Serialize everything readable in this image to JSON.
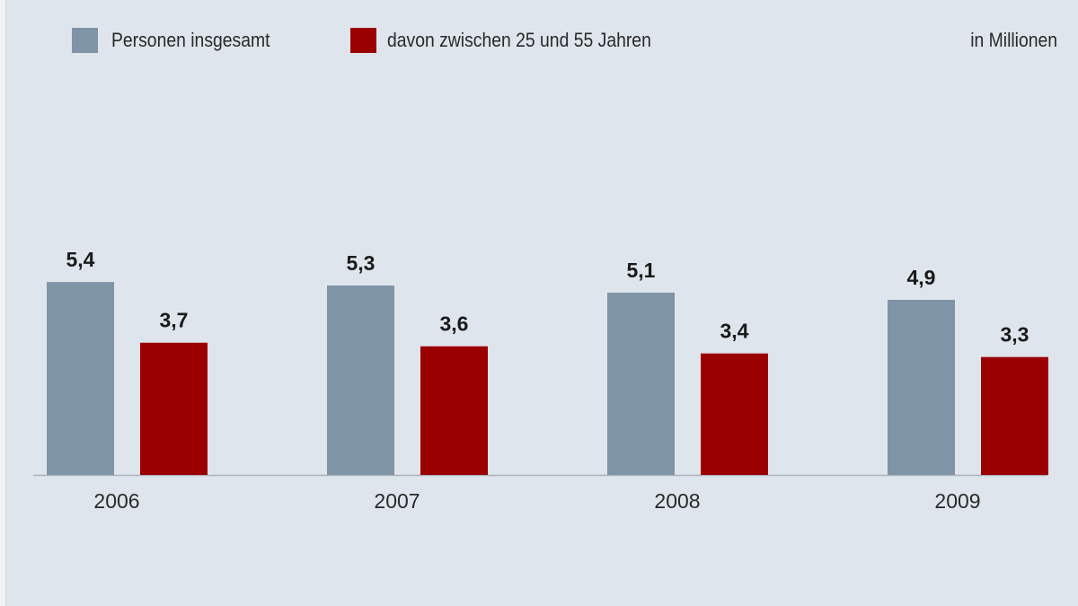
{
  "chart_data": {
    "type": "bar",
    "title": "",
    "xlabel": "",
    "ylabel": "",
    "unit_label": "in Millionen",
    "categories": [
      "2006",
      "2007",
      "2008",
      "2009"
    ],
    "series": [
      {
        "name": "Personen insgesamt",
        "color": "#7f95a6",
        "values": [
          5.4,
          5.3,
          5.1,
          4.9
        ],
        "labels": [
          "5,4",
          "5,3",
          "5,1",
          "4,9"
        ]
      },
      {
        "name": "davon zwischen 25 und 55 Jahren",
        "color": "#9b0000",
        "values": [
          3.7,
          3.6,
          3.4,
          3.3
        ],
        "labels": [
          "3,7",
          "3,6",
          "3,4",
          "3,3"
        ]
      }
    ],
    "ylim": [
      0,
      5.4
    ],
    "grid": false,
    "legend_position": "top-left",
    "background": "#dfe5ec"
  }
}
